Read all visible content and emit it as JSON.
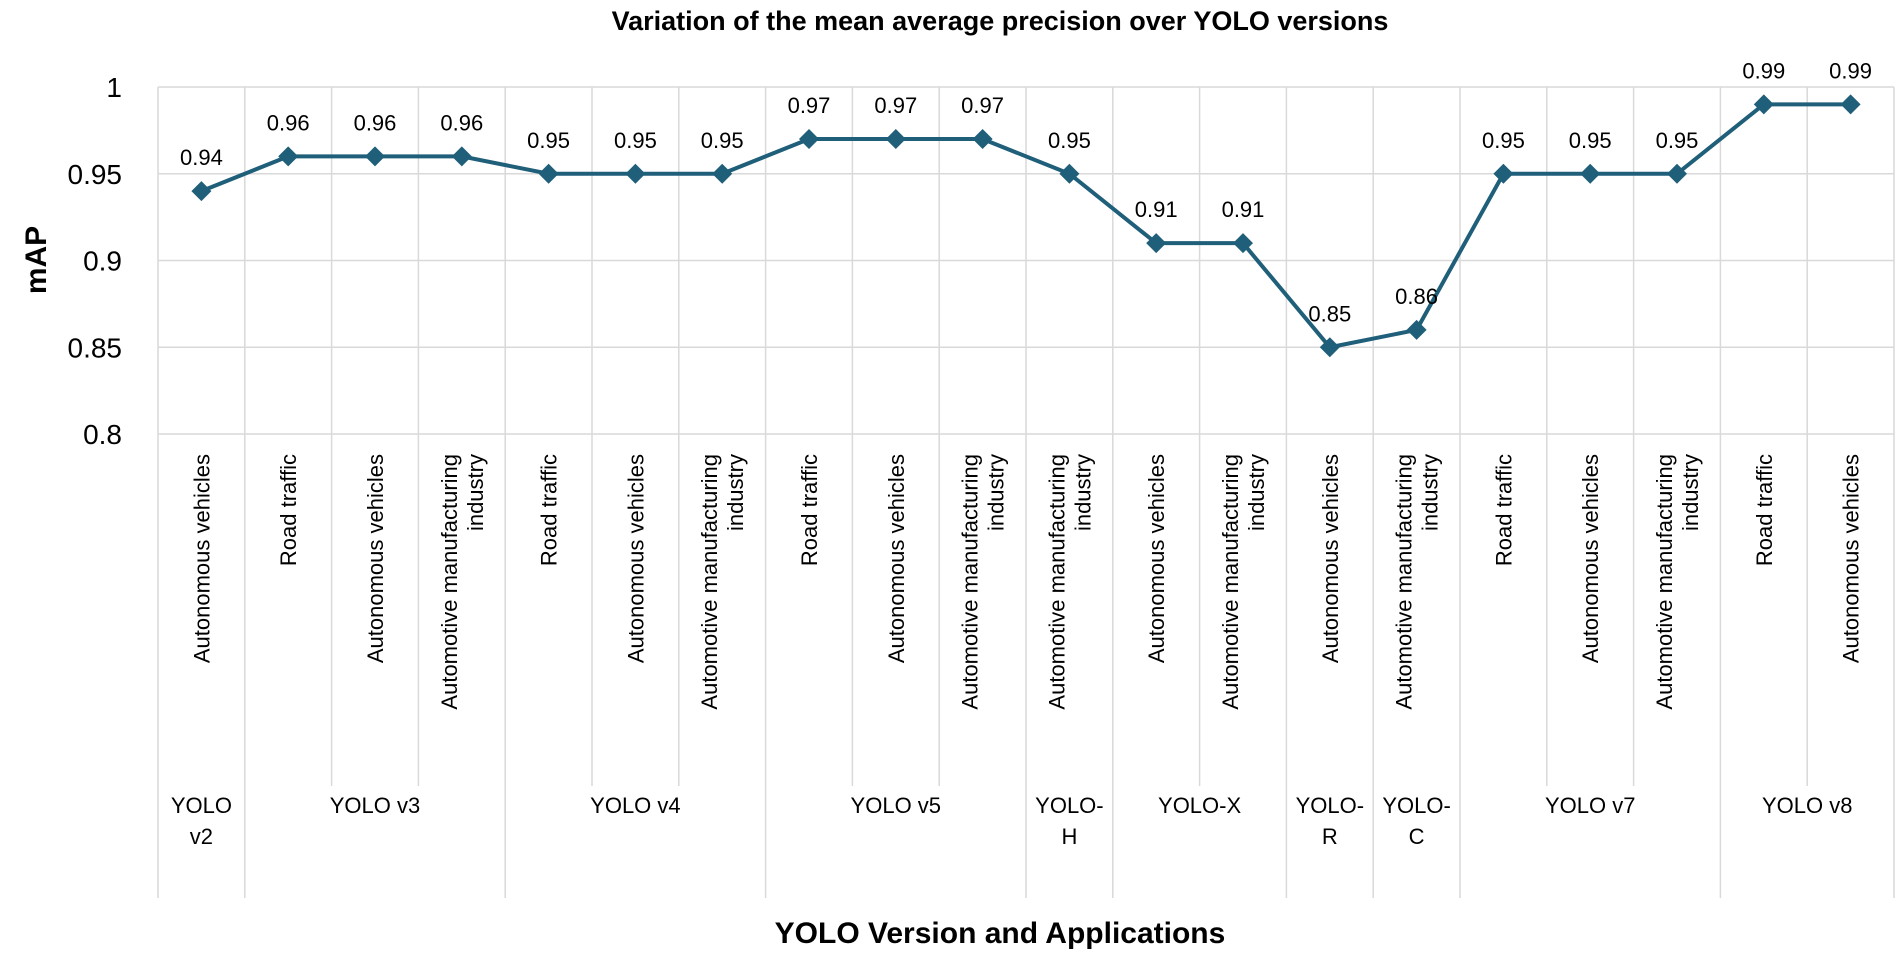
{
  "chart_data": {
    "type": "line",
    "title": "Variation of the mean average precision over YOLO versions",
    "xlabel": "YOLO Version and Applications",
    "ylabel": "mAP",
    "ylim": [
      0.8,
      1
    ],
    "yticks": [
      "0.8",
      "0.85",
      "0.9",
      "0.95",
      "1"
    ],
    "grid": true,
    "line_color": "#1f5f7a",
    "categories": [
      [
        "Autonomous vehicles"
      ],
      [
        "Road traffic"
      ],
      [
        "Autonomous vehicles"
      ],
      [
        "Automotive manufacturing",
        "industry"
      ],
      [
        "Road traffic"
      ],
      [
        "Autonomous vehicles"
      ],
      [
        "Automotive manufacturing",
        "industry"
      ],
      [
        "Road traffic"
      ],
      [
        "Autonomous vehicles"
      ],
      [
        "Automotive manufacturing",
        "industry"
      ],
      [
        "Automotive manufacturing",
        "industry"
      ],
      [
        "Autonomous vehicles"
      ],
      [
        "Automotive manufacturing",
        "industry"
      ],
      [
        "Autonomous vehicles"
      ],
      [
        "Automotive manufacturing",
        "industry"
      ],
      [
        "Road traffic"
      ],
      [
        "Autonomous vehicles"
      ],
      [
        "Automotive manufacturing",
        "industry"
      ],
      [
        "Road traffic"
      ],
      [
        "Autonomous vehicles"
      ]
    ],
    "groups": [
      {
        "label": [
          "YOLO",
          "v2"
        ],
        "start": 0,
        "end": 1
      },
      {
        "label": [
          "YOLO v3"
        ],
        "start": 1,
        "end": 4
      },
      {
        "label": [
          "YOLO v4"
        ],
        "start": 4,
        "end": 7
      },
      {
        "label": [
          "YOLO v5"
        ],
        "start": 7,
        "end": 10
      },
      {
        "label": [
          "YOLO-",
          "H"
        ],
        "start": 10,
        "end": 11
      },
      {
        "label": [
          "YOLO-X"
        ],
        "start": 11,
        "end": 13
      },
      {
        "label": [
          "YOLO-",
          "R"
        ],
        "start": 13,
        "end": 14
      },
      {
        "label": [
          "YOLO-",
          "C"
        ],
        "start": 14,
        "end": 15
      },
      {
        "label": [
          "YOLO v7"
        ],
        "start": 15,
        "end": 18
      },
      {
        "label": [
          "YOLO v8"
        ],
        "start": 18,
        "end": 20
      }
    ],
    "values": [
      0.94,
      0.96,
      0.96,
      0.96,
      0.95,
      0.95,
      0.95,
      0.97,
      0.97,
      0.97,
      0.95,
      0.91,
      0.91,
      0.85,
      0.86,
      0.95,
      0.95,
      0.95,
      0.99,
      0.99
    ],
    "data_labels": [
      "0.94",
      "0.96",
      "0.96",
      "0.96",
      "0.95",
      "0.95",
      "0.95",
      "0.97",
      "0.97",
      "0.97",
      "0.95",
      "0.91",
      "0.91",
      "0.85",
      "0.86",
      "0.95",
      "0.95",
      "0.95",
      "0.99",
      "0.99"
    ]
  }
}
